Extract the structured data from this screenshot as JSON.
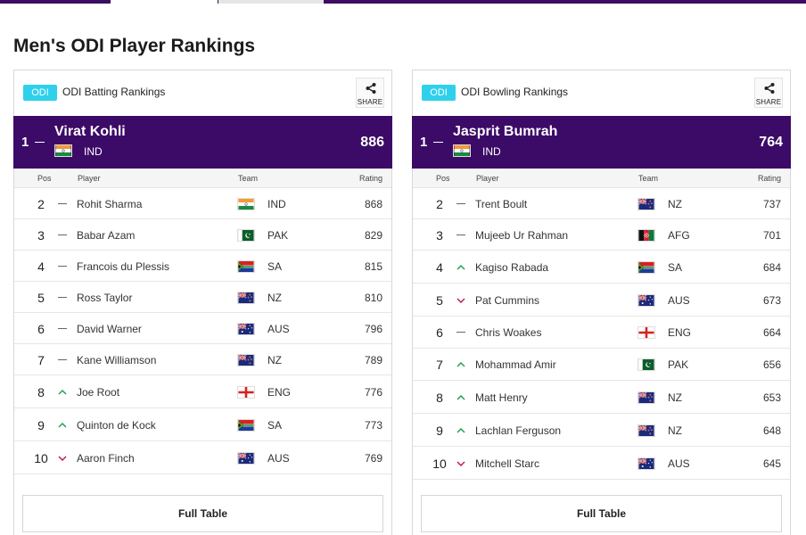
{
  "page_title": "Men's ODI Player Rankings",
  "colors": {
    "leader_bg": "#3c0a67",
    "badge": "#2fd0ec",
    "up": "#1a9c52",
    "down": "#c0163e"
  },
  "batting": {
    "badge": "ODI",
    "title": "ODI Batting Rankings",
    "share_label": "SHARE",
    "leader": {
      "pos": "1",
      "name": "Virat Kohli",
      "team": "IND",
      "rating": "886",
      "flag": "ind"
    },
    "columns": {
      "pos": "Pos",
      "player": "Player",
      "team": "Team",
      "rating": "Rating"
    },
    "rows": [
      {
        "pos": "2",
        "move": "none",
        "name": "Rohit Sharma",
        "flag": "ind",
        "team": "IND",
        "rating": "868"
      },
      {
        "pos": "3",
        "move": "none",
        "name": "Babar Azam",
        "flag": "pak",
        "team": "PAK",
        "rating": "829"
      },
      {
        "pos": "4",
        "move": "none",
        "name": "Francois du Plessis",
        "flag": "sa",
        "team": "SA",
        "rating": "815"
      },
      {
        "pos": "5",
        "move": "none",
        "name": "Ross Taylor",
        "flag": "nz",
        "team": "NZ",
        "rating": "810"
      },
      {
        "pos": "6",
        "move": "none",
        "name": "David Warner",
        "flag": "aus",
        "team": "AUS",
        "rating": "796"
      },
      {
        "pos": "7",
        "move": "none",
        "name": "Kane Williamson",
        "flag": "nz",
        "team": "NZ",
        "rating": "789"
      },
      {
        "pos": "8",
        "move": "up",
        "name": "Joe Root",
        "flag": "eng",
        "team": "ENG",
        "rating": "776"
      },
      {
        "pos": "9",
        "move": "up",
        "name": "Quinton de Kock",
        "flag": "sa",
        "team": "SA",
        "rating": "773"
      },
      {
        "pos": "10",
        "move": "down",
        "name": "Aaron Finch",
        "flag": "aus",
        "team": "AUS",
        "rating": "769"
      }
    ],
    "full_table": "Full Table"
  },
  "bowling": {
    "badge": "ODI",
    "title": "ODI Bowling Rankings",
    "share_label": "SHARE",
    "leader": {
      "pos": "1",
      "name": "Jasprit Bumrah",
      "team": "IND",
      "rating": "764",
      "flag": "ind"
    },
    "columns": {
      "pos": "Pos",
      "player": "Player",
      "team": "Team",
      "rating": "Rating"
    },
    "rows": [
      {
        "pos": "2",
        "move": "none",
        "name": "Trent Boult",
        "flag": "nz",
        "team": "NZ",
        "rating": "737"
      },
      {
        "pos": "3",
        "move": "none",
        "name": "Mujeeb Ur Rahman",
        "flag": "afg",
        "team": "AFG",
        "rating": "701"
      },
      {
        "pos": "4",
        "move": "up",
        "name": "Kagiso Rabada",
        "flag": "sa",
        "team": "SA",
        "rating": "684"
      },
      {
        "pos": "5",
        "move": "down",
        "name": "Pat Cummins",
        "flag": "aus",
        "team": "AUS",
        "rating": "673"
      },
      {
        "pos": "6",
        "move": "none",
        "name": "Chris Woakes",
        "flag": "eng",
        "team": "ENG",
        "rating": "664"
      },
      {
        "pos": "7",
        "move": "up",
        "name": "Mohammad Amir",
        "flag": "pak",
        "team": "PAK",
        "rating": "656"
      },
      {
        "pos": "8",
        "move": "up",
        "name": "Matt Henry",
        "flag": "nz",
        "team": "NZ",
        "rating": "653"
      },
      {
        "pos": "9",
        "move": "up",
        "name": "Lachlan Ferguson",
        "flag": "nz",
        "team": "NZ",
        "rating": "648"
      },
      {
        "pos": "10",
        "move": "down",
        "name": "Mitchell Starc",
        "flag": "aus",
        "team": "AUS",
        "rating": "645"
      }
    ],
    "full_table": "Full Table"
  }
}
